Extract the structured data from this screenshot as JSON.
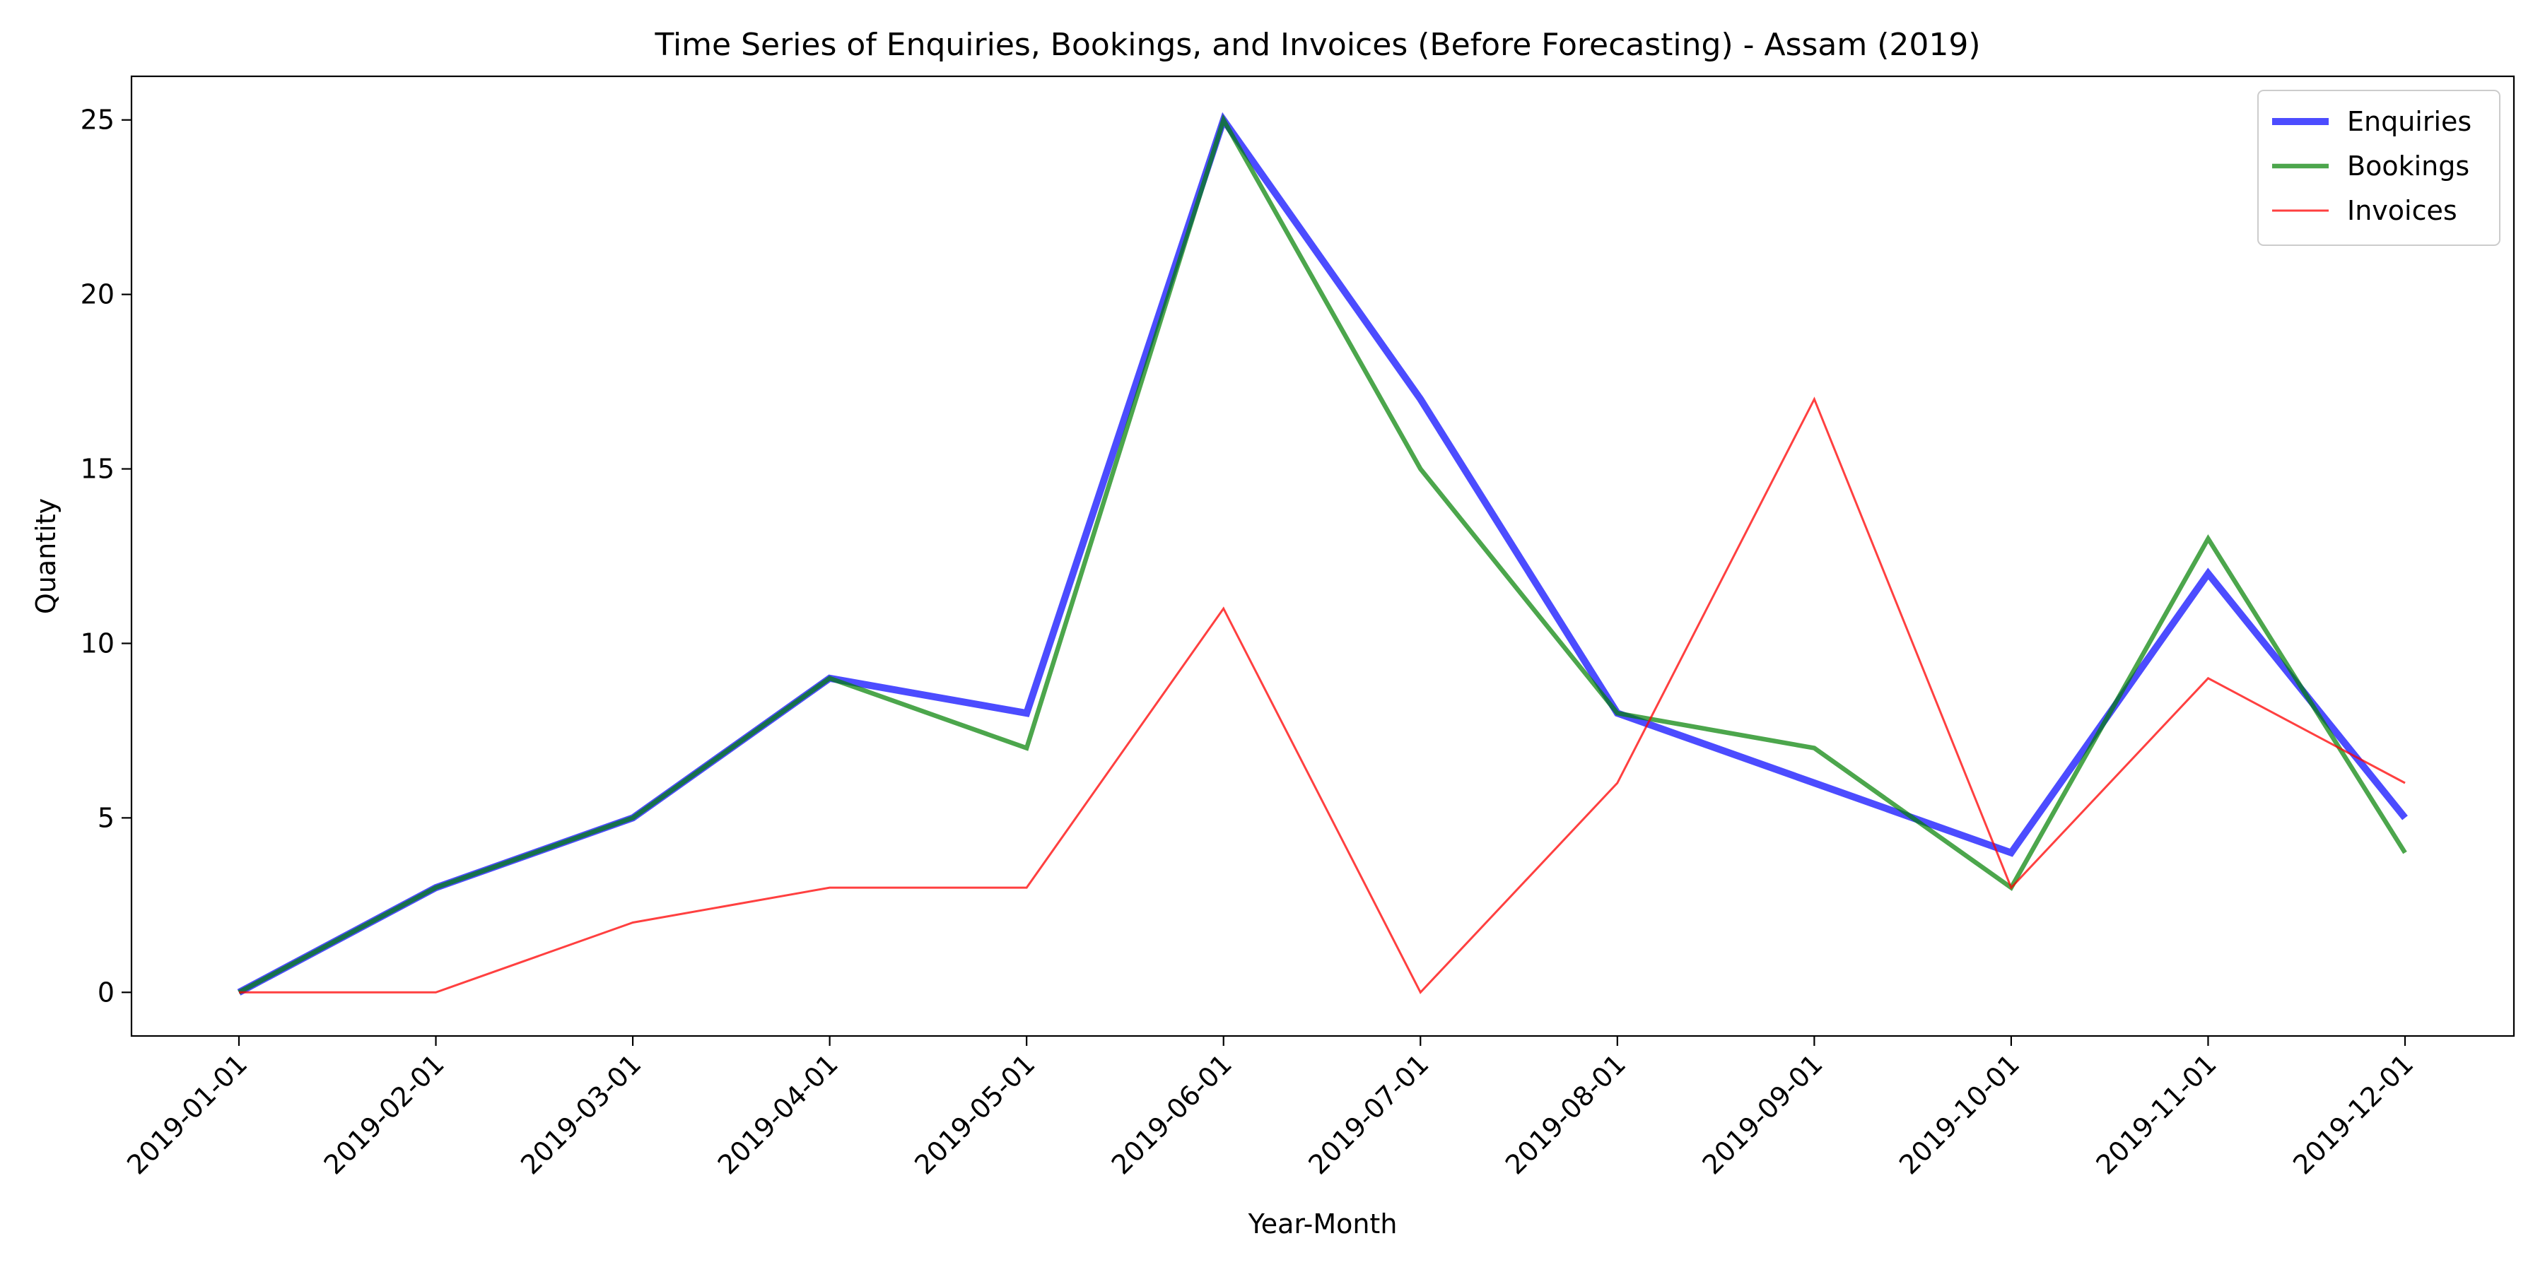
{
  "chart_data": {
    "type": "line",
    "title": "Time Series of Enquiries, Bookings, and Invoices (Before Forecasting) - Assam (2019)",
    "xlabel": "Year-Month",
    "ylabel": "Quantity",
    "categories": [
      "2019-01-01",
      "2019-02-01",
      "2019-03-01",
      "2019-04-01",
      "2019-05-01",
      "2019-06-01",
      "2019-07-01",
      "2019-08-01",
      "2019-09-01",
      "2019-10-01",
      "2019-11-01",
      "2019-12-01"
    ],
    "yticks": [
      0,
      5,
      10,
      15,
      20,
      25
    ],
    "ylim": [
      -1.25,
      26.25
    ],
    "grid": false,
    "legend_position": "top-right",
    "series": [
      {
        "name": "Enquiries",
        "color": "#0000ff",
        "opacity": 0.7,
        "width": "thick",
        "values": [
          0,
          3,
          5,
          9,
          8,
          25,
          17,
          8,
          6,
          4,
          12,
          5
        ]
      },
      {
        "name": "Bookings",
        "color": "#008000",
        "opacity": 0.7,
        "width": "medium",
        "values": [
          0,
          3,
          5,
          9,
          7,
          25,
          15,
          8,
          7,
          3,
          13,
          4
        ]
      },
      {
        "name": "Invoices",
        "color": "#ff0000",
        "opacity": 0.75,
        "width": "thin",
        "values": [
          0,
          0,
          2,
          3,
          3,
          11,
          0,
          6,
          17,
          3,
          9,
          6
        ]
      }
    ]
  }
}
